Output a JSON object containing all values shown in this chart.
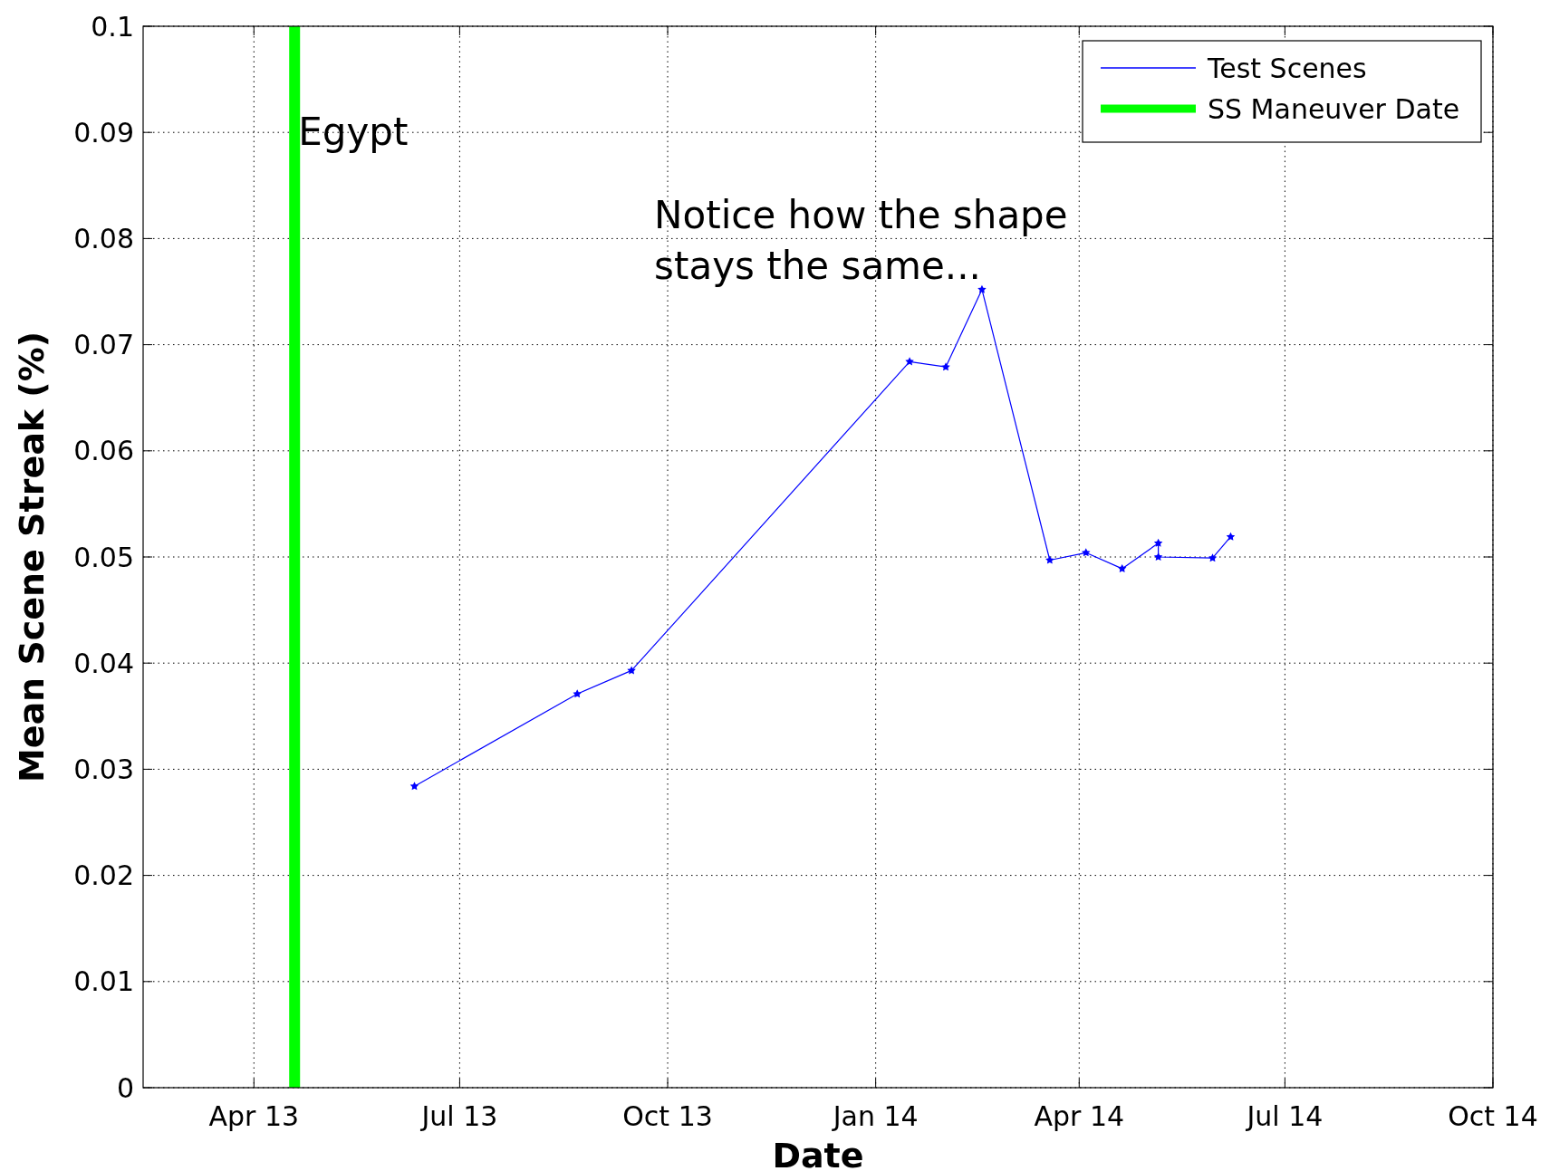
{
  "chart_data": {
    "type": "line",
    "xlabel": "Date",
    "ylabel": "Mean Scene Streak (%)",
    "xlim": [
      "2013-02-11",
      "2014-10-01"
    ],
    "xticks": [
      {
        "value": "2013-04-01",
        "label": "Apr 13"
      },
      {
        "value": "2013-07-01",
        "label": "Jul 13"
      },
      {
        "value": "2013-10-01",
        "label": "Oct 13"
      },
      {
        "value": "2014-01-01",
        "label": "Jan 14"
      },
      {
        "value": "2014-04-01",
        "label": "Apr 14"
      },
      {
        "value": "2014-07-01",
        "label": "Jul 14"
      },
      {
        "value": "2014-10-01",
        "label": "Oct 14"
      }
    ],
    "ylim": [
      0,
      0.1
    ],
    "yticks": [
      0,
      0.01,
      0.02,
      0.03,
      0.04,
      0.05,
      0.06,
      0.07,
      0.08,
      0.09,
      0.1
    ],
    "x": [
      "2013-06-11",
      "2013-08-22",
      "2013-09-15",
      "2014-01-16",
      "2014-02-01",
      "2014-02-17",
      "2014-03-19",
      "2014-04-04",
      "2014-04-20",
      "2014-05-06",
      "2014-05-06",
      "2014-05-30",
      "2014-06-07"
    ],
    "series": [
      {
        "name": "Test Scenes",
        "color": "#0000ff",
        "values": [
          0.0284,
          0.0371,
          0.0393,
          0.0684,
          0.0679,
          0.0752,
          0.0497,
          0.0504,
          0.0489,
          0.0513,
          0.05,
          0.0499,
          0.0519
        ]
      },
      {
        "name": "SS Maneuver Date",
        "color": "#00ff00",
        "x": [
          "2013-04-19",
          "2013-04-19"
        ],
        "values": [
          0,
          0.1
        ],
        "marker": "none"
      }
    ],
    "annotations": [
      {
        "text": "Egypt",
        "x": "2013-04-19",
        "y": 0.09
      },
      "Notice how the shape\nstays the same..."
    ],
    "grid": true,
    "legend": "top right",
    "marker": "star",
    "line_style": "solid"
  }
}
